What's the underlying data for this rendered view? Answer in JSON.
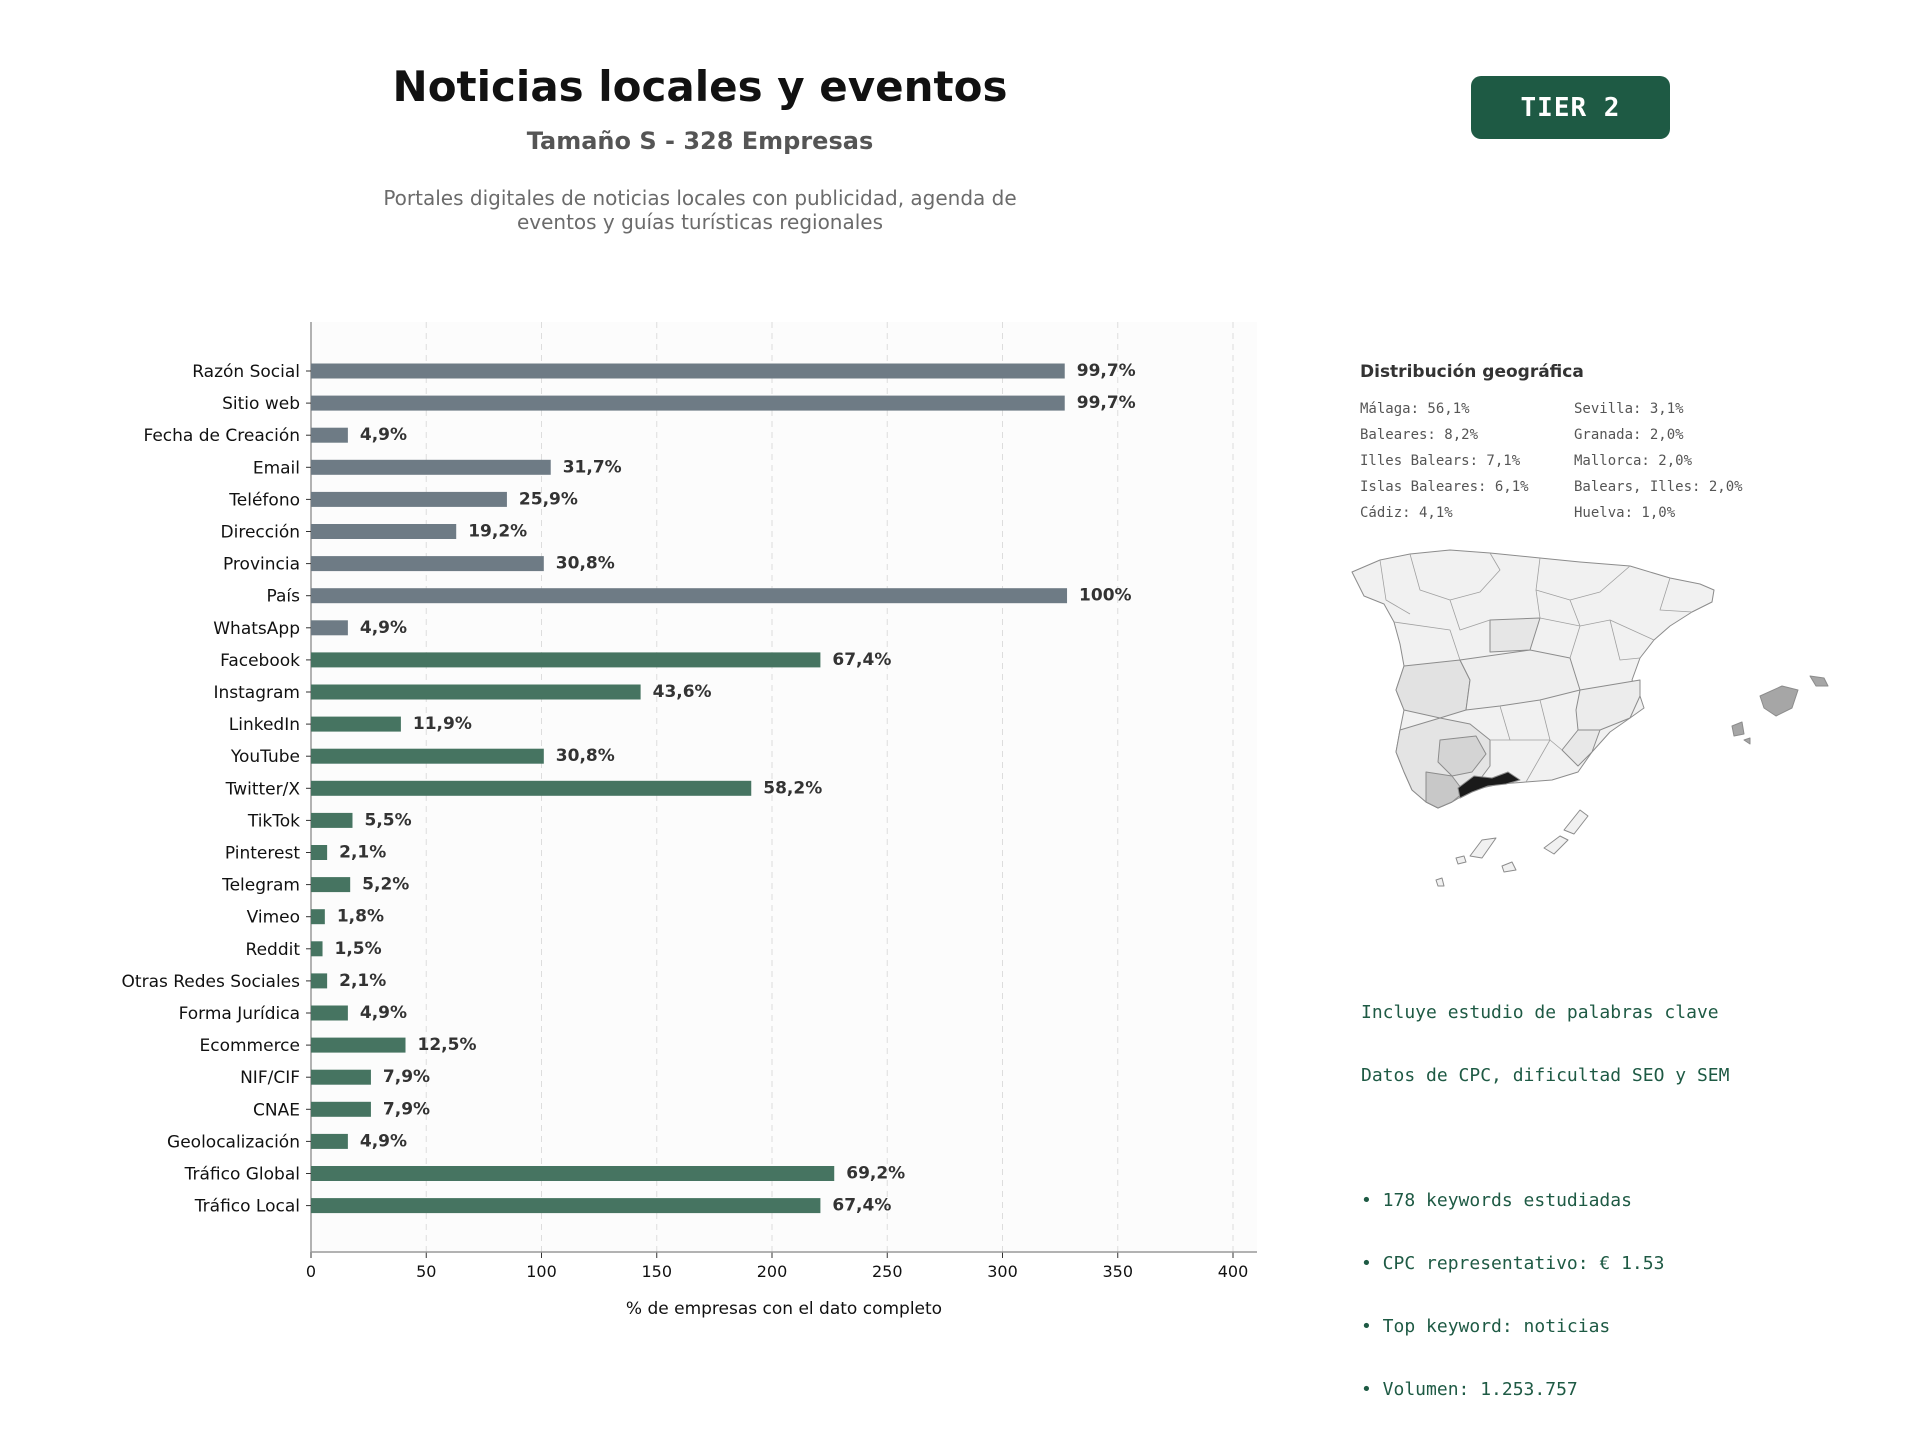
{
  "header": {
    "title": "Noticias locales y eventos",
    "subtitle": "Tamaño S - 328 Empresas",
    "description_line1": "Portales digitales de noticias locales con publicidad, agenda de",
    "description_line2": "eventos y guías turísticas regionales",
    "tier_badge": "TIER 2"
  },
  "chart_data": {
    "type": "bar",
    "orientation": "horizontal",
    "xlabel": "% de empresas con el dato completo",
    "xlim": [
      0,
      410
    ],
    "xticks": [
      0,
      50,
      100,
      150,
      200,
      250,
      300,
      350,
      400
    ],
    "grid": "vertical dashed",
    "categories": [
      "Razón Social",
      "Sitio web",
      "Fecha de Creación",
      "Email",
      "Teléfono",
      "Dirección",
      "Provincia",
      "País",
      "WhatsApp",
      "Facebook",
      "Instagram",
      "LinkedIn",
      "YouTube",
      "Twitter/X",
      "TikTok",
      "Pinterest",
      "Telegram",
      "Vimeo",
      "Reddit",
      "Otras Redes Sociales",
      "Forma Jurídica",
      "Ecommerce",
      "NIF/CIF",
      "CNAE",
      "Geolocalización",
      "Tráfico Global",
      "Tráfico Local"
    ],
    "values": [
      327,
      327,
      16,
      104,
      85,
      63,
      101,
      328,
      16,
      221,
      143,
      39,
      101,
      191,
      18,
      7,
      17,
      6,
      5,
      7,
      16,
      41,
      26,
      26,
      16,
      227,
      221
    ],
    "value_labels": [
      "99,7%",
      "99,7%",
      "4,9%",
      "31,7%",
      "25,9%",
      "19,2%",
      "30,8%",
      "100%",
      "4,9%",
      "67,4%",
      "43,6%",
      "11,9%",
      "30,8%",
      "58,2%",
      "5,5%",
      "2,1%",
      "5,2%",
      "1,8%",
      "1,5%",
      "2,1%",
      "4,9%",
      "12,5%",
      "7,9%",
      "7,9%",
      "4,9%",
      "69,2%",
      "67,4%"
    ],
    "groups": [
      "basic",
      "basic",
      "basic",
      "basic",
      "basic",
      "basic",
      "basic",
      "basic",
      "basic",
      "social",
      "social",
      "social",
      "social",
      "social",
      "social",
      "social",
      "social",
      "social",
      "social",
      "social",
      "extra",
      "extra",
      "extra",
      "extra",
      "extra",
      "extra",
      "extra"
    ],
    "colors": {
      "basic": "#6e7b85",
      "social": "#467461",
      "extra": "#467461"
    }
  },
  "geo": {
    "title": "Distribución geográfica",
    "items": [
      "Málaga: 56,1%",
      "Sevilla: 3,1%",
      "Baleares: 8,2%",
      "Granada: 2,0%",
      "Illes Balears: 7,1%",
      "Mallorca: 2,0%",
      "Islas Baleares: 6,1%",
      "Balears, Illes: 2,0%",
      "Cádiz: 4,1%",
      "Huelva: 1,0%"
    ],
    "highlight_color": "#1a1a1a"
  },
  "keywords": {
    "line1": "Incluye estudio de palabras clave",
    "line2": "Datos de CPC, dificultad SEO y SEM",
    "bullet1": "• 178 keywords estudiadas",
    "bullet2": "• CPC representativo: € 1.53",
    "bullet3": "• Top keyword: noticias",
    "bullet4": "• Volumen: 1.253.757"
  }
}
